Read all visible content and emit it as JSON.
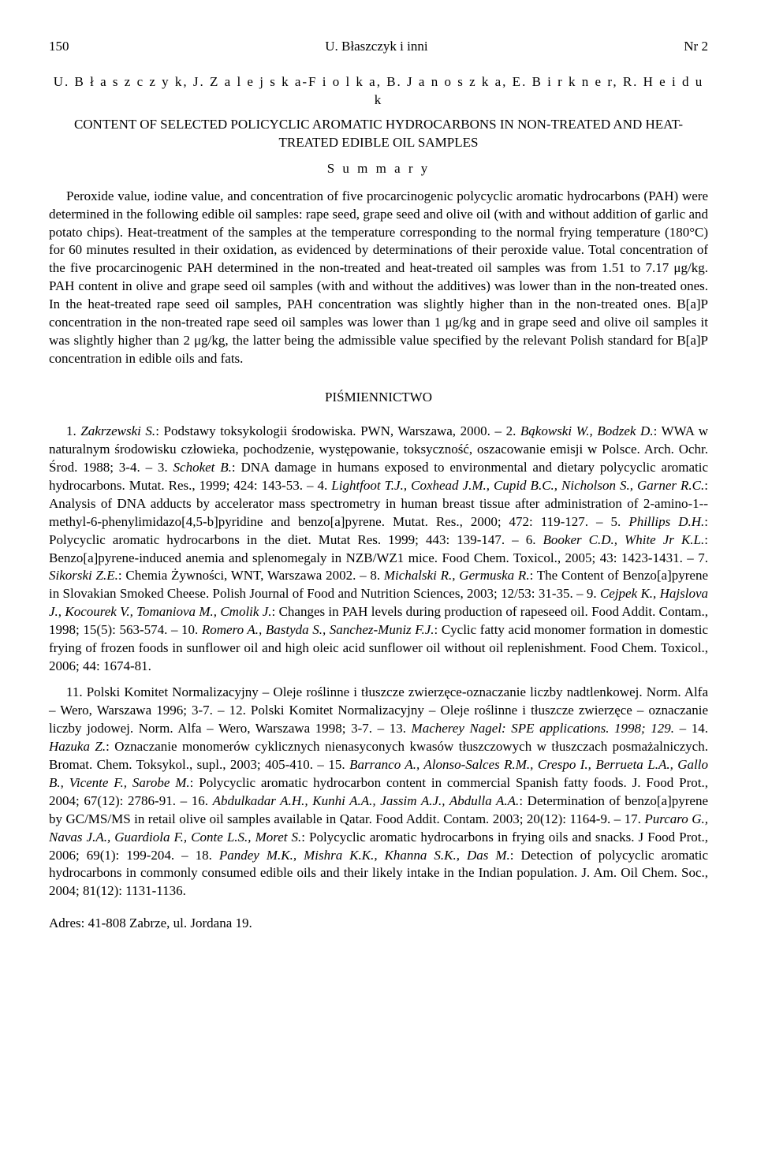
{
  "header": {
    "page_number": "150",
    "running_title": "U. Błaszczyk i inni",
    "issue": "Nr 2"
  },
  "authors_line": "U. B ł a s z c z y k, J. Z a l e j s k a-F i o l k a, B. J a n o s z k a, E. B i r k n e r, R. H e i d u k",
  "paper_title": "CONTENT OF SELECTED POLICYCLIC AROMATIC HYDROCARBONS IN NON-TREATED AND HEAT-TREATED EDIBLE OIL SAMPLES",
  "summary_label": "S u m m a r y",
  "abstract": "Peroxide value, iodine value, and concentration of five procarcinogenic polycyclic aromatic hydrocarbons (PAH) were determined in the following edible oil samples: rape seed, grape seed and olive oil (with and without addition of garlic and potato chips). Heat-treatment of the samples at the temperature corresponding to the normal frying temperature (180°C) for 60 minutes resulted in their oxidation, as evidenced by determinations of their peroxide value. Total concentration of the five procarcinogenic PAH determined in the non-treated and heat-treated oil samples was from 1.51 to 7.17 μg/kg. PAH content in olive and grape seed oil samples (with and without the additives) was lower than in the non-treated ones. In the heat-treated rape seed oil samples, PAH concentration was slightly higher than in the non-treated ones. B[a]P concentration in the non-treated rape seed oil samples was lower than 1 μg/kg and in grape seed and olive oil samples it was slightly higher than 2 μg/kg, the latter being the admissible value specified by the relevant Polish standard for B[a]P concentration in edible oils and fats.",
  "refs_heading": "PIŚMIENNICTWO",
  "refs_block1_html": "1. <i>Zakrzewski S.</i>: Podstawy toksykologii środowiska. PWN, Warszawa, 2000. – 2. <i>Bąkowski W., Bodzek D.</i>: WWA w naturalnym środowisku człowieka, pochodzenie, występowanie, toksyczność, oszacowanie emisji w Polsce. Arch. Ochr. Środ. 1988; 3-4. – 3. <i>Schoket B.</i>: DNA damage in humans exposed to environmental and dietary polycyclic aromatic hydrocarbons. Mutat. Res., 1999; 424: 143-53. – 4. <i>Lightfoot T.J., Coxhead J.M., Cupid B.C., Nicholson S., Garner R.C.</i>: Analysis of DNA adducts by accelerator mass spectrometry in human breast tissue after administration of 2-amino-1-​-methyl-6-phenylimidazo[4,5-b]pyridine and benzo[a]pyrene. Mutat. Res., 2000; 472: 119-127. – 5. <i>Phillips D.H.</i>: Polycyclic aromatic hydrocarbons in the diet. Mutat Res. 1999; 443: 139-147. – 6. <i>Booker C.D., White Jr K.L.</i>: Benzo[a]pyrene-induced anemia and splenomegaly in NZB/WZ1 mice. Food Chem. Toxicol., 2005; 43: 1423-1431. – 7. <i>Sikorski Z.E.</i>: Chemia Żywności, WNT, Warszawa 2002. – 8. <i>Michalski R., Germuska R.</i>: The Content of Benzo[a]pyrene in Slovakian Smoked Cheese. Polish Journal of Food and Nutrition Sciences, 2003; 12/53: 31-35. – 9. <i>Cejpek K., Hajslova J., Kocourek V., Tomaniova M., Cmolik J.</i>: Changes in PAH levels during production of rapeseed oil. Food Addit. Contam., 1998; 15(5): 563-574. – 10. <i>Romero A., Bastyda S., Sanchez-Muniz F.J.</i>: Cyclic fatty acid monomer formation in domestic frying of frozen foods in sunflower oil and high oleic acid sunflower oil without oil replenishment. Food Chem. Toxicol., 2006; 44: 1674-81.",
  "refs_block2_html": "11. Polski Komitet Normalizacyjny – Oleje roślinne i tłuszcze zwierzęce-oznaczanie liczby nadtlenkowej. Norm. Alfa – Wero, Warszawa 1996; 3-7. – 12. Polski Komitet Normalizacyjny – Oleje roślinne i tłuszcze zwierzęce – oznaczanie liczby jodowej. Norm. Alfa – Wero, Warszawa 1998; 3-7. – 13. <i>Macherey Nagel: SPE applications. 1998; 129.</i> – 14. <i>Hazuka Z.</i>: Oznaczanie monomerów cyklicznych nienasyconych kwasów tłuszczowych w tłuszczach posmażalniczych. Bromat. Chem. Toksykol., supl., 2003; 405-410. – 15. <i>Barranco A., Alonso-Salces R.M., Crespo I., Berrueta L.A., Gallo B., Vicente F., Sarobe M.</i>: Polycyclic aromatic hydrocarbon content in commercial Spanish fatty foods. J. Food Prot., 2004; 67(12): 2786-91. – 16. <i>Abdulkadar A.H., Kunhi A.A., Jassim A.J., Abdulla A.A.</i>: Determination of benzo[a]pyrene by GC/MS/MS in retail olive oil samples available in Qatar. Food Addit. Contam. 2003; 20(12): 1164-9. – 17. <i>Purcaro G., Navas J.A., Guardiola F., Conte L.S., Moret S.</i>: Polycyclic aromatic hydrocarbons in frying oils and snacks. J Food Prot., 2006; 69(1): 199-204. – 18. <i>Pandey M.K., Mishra K.K., Khanna S.K., Das M.</i>: Detection of polycyclic aromatic hydrocarbons in commonly consumed edible oils and their likely intake in the Indian population. J. Am. Oil Chem. Soc., 2004; 81(12): 1131-1136.",
  "address": "Adres: 41-808 Zabrze, ul. Jordana 19."
}
